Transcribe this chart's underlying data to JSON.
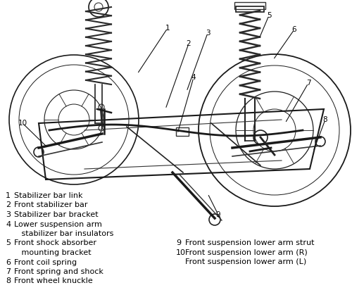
{
  "background_color": "#ffffff",
  "fig_width": 5.0,
  "fig_height": 4.29,
  "dpi": 100,
  "legend_left": [
    {
      "num": "1",
      "text": "Stabilizer bar link",
      "extra": ""
    },
    {
      "num": "2",
      "text": "Front stabilizer bar",
      "extra": ""
    },
    {
      "num": "3",
      "text": "Stabilizer bar bracket",
      "extra": ""
    },
    {
      "num": "4",
      "text": "Lower suspension arm",
      "extra": "stabilizer bar insulators"
    },
    {
      "num": "5",
      "text": "Front shock absorber",
      "extra": "mounting bracket"
    },
    {
      "num": "6",
      "text": "Front coil spring",
      "extra": ""
    },
    {
      "num": "7",
      "text": "Front spring and shock",
      "extra": ""
    },
    {
      "num": "8",
      "text": "Front wheel knuckle",
      "extra": ""
    }
  ],
  "legend_right": [
    {
      "num": "9",
      "text": "Front suspension lower arm strut",
      "extra": ""
    },
    {
      "num": "10",
      "text": "Front suspension lower arm (R)",
      "extra": ""
    },
    {
      "num": "",
      "text": "Front suspension lower arm (L)",
      "extra": ""
    }
  ],
  "font_size": 8.0,
  "text_color": "#000000"
}
